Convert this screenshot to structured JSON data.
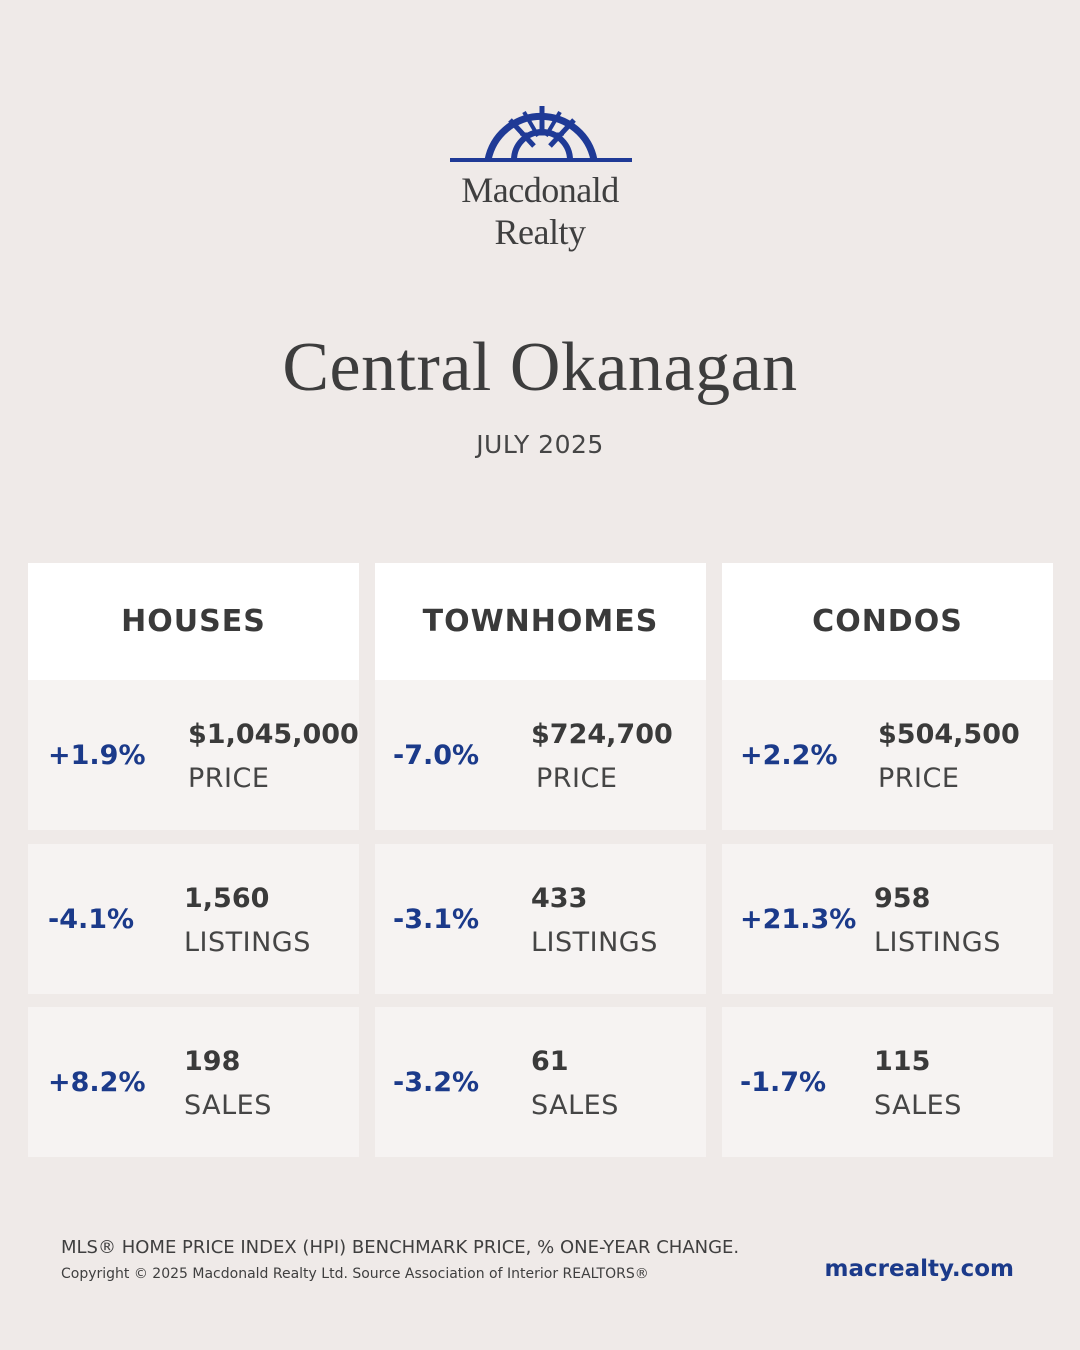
{
  "brand": {
    "name_line1": "Macdonald",
    "name_line2": "Realty",
    "color": "#1f3a96"
  },
  "title": "Central Okanagan",
  "subtitle": "JULY 2025",
  "columns": [
    {
      "header": "HOUSES",
      "stats": [
        {
          "change": "+1.9%",
          "value": "$1,045,000",
          "label": "PRICE"
        },
        {
          "change": "-4.1%",
          "value": "1,560",
          "label": "LISTINGS"
        },
        {
          "change": "+8.2%",
          "value": "198",
          "label": "SALES"
        }
      ]
    },
    {
      "header": "TOWNHOMES",
      "stats": [
        {
          "change": "-7.0%",
          "value": "$724,700",
          "label": "PRICE"
        },
        {
          "change": "-3.1%",
          "value": "433",
          "label": "LISTINGS"
        },
        {
          "change": "-3.2%",
          "value": "61",
          "label": "SALES"
        }
      ]
    },
    {
      "header": "CONDOS",
      "stats": [
        {
          "change": "+2.2%",
          "value": "$504,500",
          "label": "PRICE"
        },
        {
          "change": "+21.3%",
          "value": "958",
          "label": "LISTINGS"
        },
        {
          "change": "-1.7%",
          "value": "115",
          "label": "SALES"
        }
      ]
    }
  ],
  "footer": {
    "note": "MLS® HOME PRICE INDEX (HPI) BENCHMARK PRICE, % ONE-YEAR CHANGE.",
    "copyright": "Copyright © 2025 Macdonald Realty Ltd. Source Association of Interior REALTORS®",
    "website": "macrealty.com"
  },
  "colors": {
    "background": "#efeae8",
    "header_bg": "#ffffff",
    "cell_bg": "#f6f3f2",
    "accent": "#1b3a8a"
  }
}
